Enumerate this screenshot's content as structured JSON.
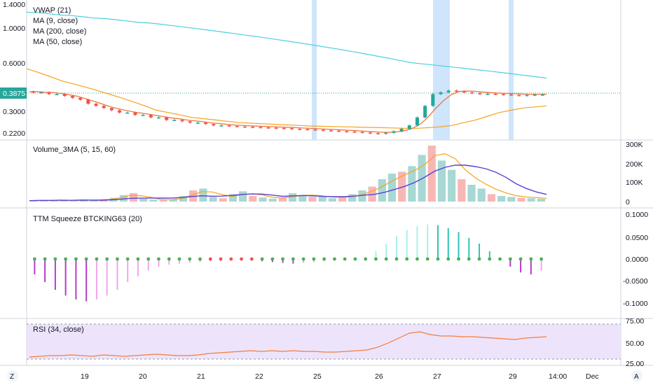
{
  "colors": {
    "up": "#26a69a",
    "down": "#ef5350",
    "vwap": "#4dd0e1",
    "ma9": "#ef6c2f",
    "ma200": "#4dd0e1",
    "ma50": "#f7a21b",
    "vol_ma_fast": "#f7a21b",
    "vol_ma_mid": "#ef5350",
    "vol_ma_slow": "#5b3fd6",
    "squeeze_pos_strong": "#2ec4b6",
    "squeeze_pos_weak": "#a7f0ee",
    "squeeze_neg_strong": "#b43cc6",
    "squeeze_neg_weak": "#f1a6ec",
    "squeeze_on": "#ef5350",
    "squeeze_off": "#4caf50",
    "rsi": "#f57c3a",
    "rsi_band": "#ede4fb",
    "highlight": "#cfe5fb",
    "price_tag": "#26a69a"
  },
  "price_pane": {
    "legend": [
      "VWAP (21)",
      "MA (9, close)",
      "MA (200, close)",
      "MA (50, close)"
    ],
    "axis_labels": [
      "1.4000",
      "1.0000",
      "0.6000",
      "0.3000",
      "0.2200"
    ],
    "last_price": "0.3875",
    "highlight_days": [
      "25",
      "27",
      "29"
    ]
  },
  "volume_pane": {
    "title": "Volume_3MA (5, 15, 60)",
    "axis_labels": [
      "300K",
      "200K",
      "100K",
      "0"
    ]
  },
  "squeeze_pane": {
    "title": "TTM Squeeze BTCKING63 (20)",
    "axis_labels": [
      "0.1000",
      "0.0500",
      "0.0000",
      "-0.0500",
      "-0.1000"
    ]
  },
  "rsi_pane": {
    "title": "RSI (34, close)",
    "axis_labels": [
      "75.00",
      "50.00",
      "25.00"
    ]
  },
  "time_axis": {
    "labels": [
      "19",
      "20",
      "21",
      "22",
      "25",
      "26",
      "27",
      "29",
      "14:00",
      "Dec"
    ],
    "left_button": "Z",
    "right_button": "A"
  },
  "chart_data": {
    "type": "candlestick",
    "price_ticks": [
      1.4,
      1.0,
      0.6,
      0.3,
      0.22
    ],
    "price_close": [
      0.4,
      0.4,
      0.39,
      0.39,
      0.38,
      0.37,
      0.36,
      0.34,
      0.33,
      0.32,
      0.31,
      0.3,
      0.3,
      0.29,
      0.29,
      0.28,
      0.28,
      0.27,
      0.27,
      0.265,
      0.26,
      0.26,
      0.255,
      0.25,
      0.25,
      0.248,
      0.246,
      0.245,
      0.244,
      0.243,
      0.242,
      0.241,
      0.24,
      0.238,
      0.237,
      0.236,
      0.235,
      0.233,
      0.232,
      0.23,
      0.229,
      0.228,
      0.226,
      0.224,
      0.222,
      0.225,
      0.23,
      0.238,
      0.25,
      0.28,
      0.33,
      0.39,
      0.4,
      0.41,
      0.405,
      0.4,
      0.395,
      0.39,
      0.392,
      0.39,
      0.388,
      0.385,
      0.383,
      0.385,
      0.387,
      0.3875
    ],
    "vwap": [
      1.25,
      1.24,
      1.22,
      1.2,
      1.19,
      1.17,
      1.15,
      1.14,
      1.12,
      1.1,
      1.08,
      1.07,
      1.05,
      1.03,
      1.01,
      0.99,
      0.97,
      0.95,
      0.93,
      0.91,
      0.89,
      0.87,
      0.85,
      0.83,
      0.81,
      0.79,
      0.77,
      0.75,
      0.73,
      0.71,
      0.69,
      0.67,
      0.65,
      0.63,
      0.61,
      0.6,
      0.59,
      0.58,
      0.57,
      0.56,
      0.55,
      0.54,
      0.53,
      0.52,
      0.51,
      0.5,
      0.49
    ],
    "ma50": [
      0.56,
      0.53,
      0.5,
      0.47,
      0.45,
      0.43,
      0.41,
      0.39,
      0.37,
      0.35,
      0.33,
      0.31,
      0.3,
      0.29,
      0.28,
      0.275,
      0.27,
      0.265,
      0.26,
      0.258,
      0.256,
      0.254,
      0.252,
      0.25,
      0.248,
      0.247,
      0.246,
      0.245,
      0.244,
      0.243,
      0.242,
      0.241,
      0.24,
      0.24,
      0.242,
      0.245,
      0.25,
      0.26,
      0.27,
      0.285,
      0.3,
      0.31,
      0.32,
      0.325,
      0.33
    ],
    "volume_k": [
      5,
      8,
      6,
      10,
      4,
      12,
      9,
      7,
      20,
      35,
      45,
      15,
      10,
      8,
      12,
      30,
      60,
      70,
      25,
      18,
      40,
      55,
      30,
      22,
      15,
      20,
      45,
      35,
      25,
      30,
      18,
      22,
      40,
      60,
      80,
      120,
      150,
      160,
      190,
      250,
      300,
      220,
      170,
      120,
      90,
      70,
      40,
      30,
      25,
      20,
      18,
      15
    ],
    "squeeze": [
      -0.04,
      -0.06,
      -0.08,
      -0.095,
      -0.105,
      -0.11,
      -0.105,
      -0.095,
      -0.08,
      -0.06,
      -0.045,
      -0.03,
      -0.02,
      -0.015,
      -0.012,
      -0.01,
      -0.008,
      -0.006,
      -0.005,
      -0.004,
      -0.003,
      -0.004,
      -0.006,
      -0.008,
      -0.01,
      -0.012,
      -0.01,
      -0.008,
      -0.006,
      -0.004,
      -0.003,
      -0.002,
      0.005,
      0.02,
      0.04,
      0.06,
      0.075,
      0.085,
      0.09,
      0.088,
      0.08,
      0.07,
      0.055,
      0.04,
      0.02,
      0.0,
      -0.02,
      -0.035,
      -0.04,
      -0.03
    ],
    "rsi": [
      28,
      29,
      30,
      30,
      31,
      30,
      29,
      31,
      30,
      29,
      30,
      31,
      32,
      31,
      30,
      30,
      31,
      33,
      34,
      35,
      36,
      37,
      36,
      37,
      36,
      37,
      36,
      36,
      35,
      35,
      36,
      37,
      38,
      42,
      48,
      55,
      62,
      64,
      60,
      58,
      58,
      57,
      57,
      56,
      55,
      54,
      53,
      55,
      56,
      57
    ],
    "rsi_band": [
      30,
      70
    ],
    "rsi_ticks": [
      75,
      50,
      25
    ],
    "squeeze_ticks": [
      0.1,
      0.05,
      0,
      -0.05,
      -0.1
    ],
    "volume_ticks_k": [
      300,
      200,
      100,
      0
    ]
  }
}
